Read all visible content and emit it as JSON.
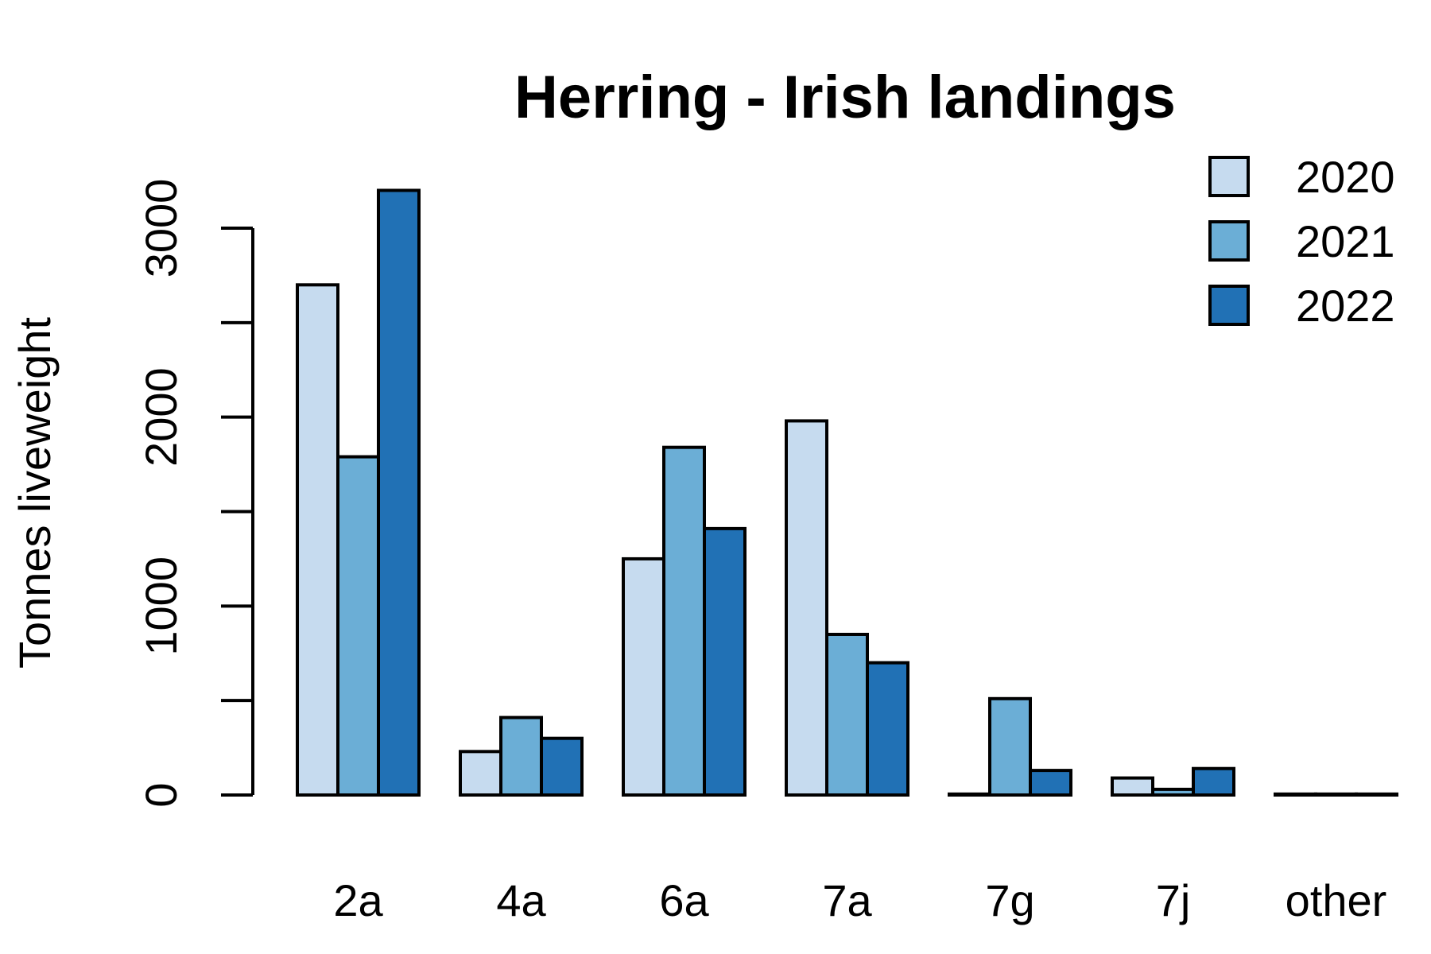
{
  "chart_data": {
    "type": "bar",
    "title": "Herring - Irish landings",
    "xlabel": "",
    "ylabel": "Tonnes liveweight",
    "categories": [
      "2a",
      "4a",
      "6a",
      "7a",
      "7g",
      "7j",
      "other"
    ],
    "series": [
      {
        "name": "2020",
        "values": [
          2700,
          230,
          1250,
          1980,
          5,
          90,
          5
        ],
        "color": "#c6dbef"
      },
      {
        "name": "2021",
        "values": [
          1790,
          410,
          1840,
          850,
          510,
          30,
          5
        ],
        "color": "#6baed6"
      },
      {
        "name": "2022",
        "values": [
          3200,
          300,
          1410,
          700,
          130,
          140,
          5
        ],
        "color": "#2171b5"
      }
    ],
    "ylim": [
      0,
      3200
    ],
    "yticks": [
      0,
      500,
      1000,
      1500,
      2000,
      2500,
      3000
    ],
    "ytick_labels": [
      "0",
      "",
      "1000",
      "",
      "2000",
      "",
      "3000"
    ],
    "legend_position": "top-right",
    "grid": false
  }
}
